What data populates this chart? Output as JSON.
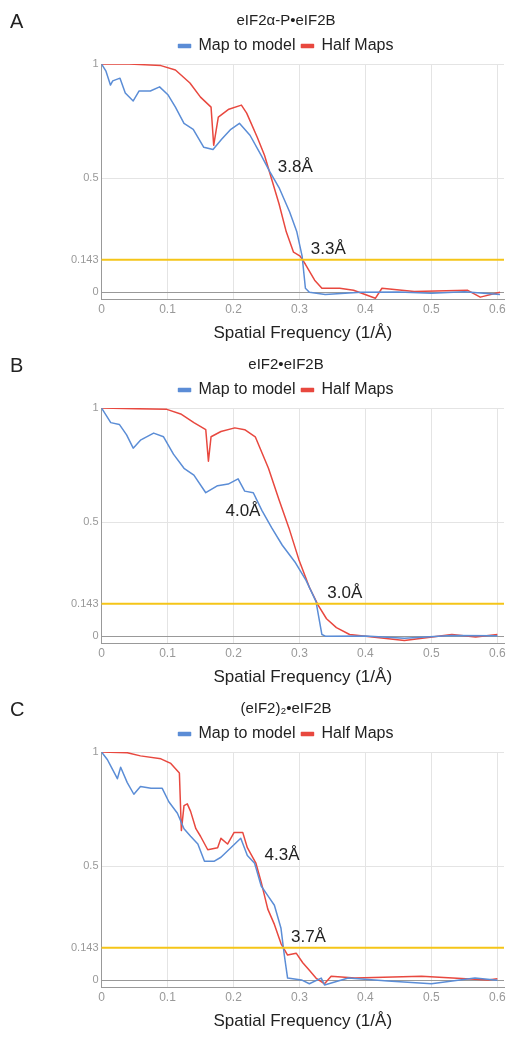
{
  "chart_data": [
    {
      "type": "line",
      "title": "eIF2α-P•eIF2B",
      "xlabel": "Spatial Frequency (1/Å)",
      "annotations": [
        "A",
        {
          "text": "3.8Å",
          "x": 0.255,
          "y": 0.5
        },
        {
          "text": "3.3Å",
          "x": 0.305,
          "y": 0.143
        }
      ],
      "xlim": [
        0,
        0.61
      ],
      "xticks": [
        0,
        0.1,
        0.2,
        0.3,
        0.4,
        0.5,
        0.6
      ],
      "ylim": [
        -0.03,
        1
      ],
      "yticks": [
        0,
        0.143,
        0.5,
        1
      ],
      "grid": true,
      "legend": "top",
      "ref_lines": [
        {
          "axis": "y",
          "value": 0.143,
          "color": "#f5c518"
        }
      ],
      "series": [
        {
          "name": "Map to model",
          "color": "#5b8dd6",
          "x": [
            0,
            0.0065,
            0.0135,
            0.017,
            0.028,
            0.036,
            0.048,
            0.057,
            0.074,
            0.088,
            0.101,
            0.112,
            0.125,
            0.139,
            0.155,
            0.169,
            0.182,
            0.196,
            0.209,
            0.225,
            0.242,
            0.255,
            0.269,
            0.285,
            0.296,
            0.304,
            0.309,
            0.315,
            0.339,
            0.393,
            0.45,
            0.5,
            0.55,
            0.604
          ],
          "values": [
            1,
            0.97,
            0.908,
            0.926,
            0.938,
            0.873,
            0.838,
            0.882,
            0.882,
            0.9,
            0.864,
            0.811,
            0.74,
            0.714,
            0.635,
            0.626,
            0.67,
            0.714,
            0.74,
            0.688,
            0.6,
            0.529,
            0.459,
            0.353,
            0.265,
            0.159,
            0.018,
            0,
            -0.009,
            0,
            0.002,
            -0.004,
            0.003,
            -0.009
          ]
        },
        {
          "name": "Half Maps",
          "color": "#e8483f",
          "x": [
            0,
            0.042,
            0.09,
            0.112,
            0.134,
            0.15,
            0.166,
            0.17,
            0.177,
            0.193,
            0.212,
            0.22,
            0.236,
            0.247,
            0.258,
            0.269,
            0.28,
            0.291,
            0.301,
            0.309,
            0.323,
            0.334,
            0.361,
            0.382,
            0.415,
            0.425,
            0.474,
            0.555,
            0.574,
            0.604
          ],
          "values": [
            1,
            1,
            0.993,
            0.974,
            0.917,
            0.855,
            0.811,
            0.644,
            0.767,
            0.802,
            0.82,
            0.785,
            0.679,
            0.6,
            0.494,
            0.388,
            0.265,
            0.176,
            0.159,
            0.123,
            0.053,
            0.018,
            0.018,
            0.009,
            -0.026,
            0.018,
            0.004,
            0.009,
            -0.021,
            0
          ]
        }
      ]
    },
    {
      "type": "line",
      "title": "eIF2•eIF2B",
      "xlabel": "Spatial Frequency (1/Å)",
      "annotations": [
        "B",
        {
          "text": "4.0Å",
          "x": 0.253,
          "y": 0.5
        },
        {
          "text": "3.0Å",
          "x": 0.33,
          "y": 0.143
        }
      ],
      "xlim": [
        0,
        0.61
      ],
      "xticks": [
        0,
        0.1,
        0.2,
        0.3,
        0.4,
        0.5,
        0.6
      ],
      "ylim": [
        -0.03,
        1
      ],
      "yticks": [
        0,
        0.143,
        0.5,
        1
      ],
      "grid": true,
      "legend": "top",
      "ref_lines": [
        {
          "axis": "y",
          "value": 0.143,
          "color": "#f5c518"
        }
      ],
      "series": [
        {
          "name": "Map to model",
          "color": "#5b8dd6",
          "x": [
            0,
            0.014,
            0.027,
            0.038,
            0.048,
            0.059,
            0.079,
            0.094,
            0.109,
            0.125,
            0.14,
            0.158,
            0.176,
            0.192,
            0.207,
            0.217,
            0.23,
            0.243,
            0.258,
            0.274,
            0.294,
            0.31,
            0.325,
            0.334,
            0.34,
            0.4,
            0.459,
            0.53,
            0.6
          ],
          "values": [
            1,
            0.936,
            0.928,
            0.882,
            0.824,
            0.859,
            0.89,
            0.874,
            0.798,
            0.736,
            0.706,
            0.629,
            0.66,
            0.667,
            0.69,
            0.636,
            0.629,
            0.552,
            0.475,
            0.399,
            0.322,
            0.245,
            0.153,
            0.008,
            0,
            0.002,
            -0.008,
            0.004,
            0.003
          ]
        },
        {
          "name": "Half Maps",
          "color": "#e8483f",
          "x": [
            0,
            0.053,
            0.099,
            0.12,
            0.14,
            0.158,
            0.162,
            0.166,
            0.181,
            0.202,
            0.217,
            0.233,
            0.253,
            0.269,
            0.284,
            0.299,
            0.315,
            0.328,
            0.341,
            0.356,
            0.376,
            0.428,
            0.459,
            0.531,
            0.567,
            0.6
          ],
          "values": [
            1,
            0.997,
            0.994,
            0.974,
            0.936,
            0.905,
            0.767,
            0.874,
            0.897,
            0.913,
            0.905,
            0.874,
            0.736,
            0.598,
            0.475,
            0.337,
            0.215,
            0.138,
            0.077,
            0.038,
            0.008,
            -0.008,
            -0.018,
            0.008,
            -0.003,
            0.008
          ]
        }
      ]
    },
    {
      "type": "line",
      "title": "(eIF2)₂•eIF2B",
      "xlabel": "Spatial Frequency (1/Å)",
      "annotations": [
        "C",
        {
          "text": "4.3Å",
          "x": 0.235,
          "y": 0.5
        },
        {
          "text": "3.7Å",
          "x": 0.275,
          "y": 0.143
        }
      ],
      "xlim": [
        0,
        0.61
      ],
      "xticks": [
        0,
        0.1,
        0.2,
        0.3,
        0.4,
        0.5,
        0.6
      ],
      "ylim": [
        -0.03,
        1
      ],
      "yticks": [
        0,
        0.143,
        0.5,
        1
      ],
      "grid": true,
      "legend": "top",
      "ref_lines": [
        {
          "axis": "y",
          "value": 0.143,
          "color": "#f5c518"
        }
      ],
      "series": [
        {
          "name": "Map to model",
          "color": "#5b8dd6",
          "x": [
            0,
            0.009,
            0.024,
            0.029,
            0.039,
            0.049,
            0.059,
            0.075,
            0.092,
            0.102,
            0.115,
            0.125,
            0.135,
            0.146,
            0.156,
            0.171,
            0.181,
            0.196,
            0.211,
            0.221,
            0.232,
            0.242,
            0.252,
            0.262,
            0.272,
            0.277,
            0.282,
            0.303,
            0.315,
            0.333,
            0.338,
            0.374,
            0.434,
            0.5,
            0.566,
            0.6
          ],
          "values": [
            1,
            0.966,
            0.883,
            0.933,
            0.866,
            0.815,
            0.849,
            0.841,
            0.841,
            0.782,
            0.732,
            0.664,
            0.631,
            0.597,
            0.522,
            0.522,
            0.539,
            0.581,
            0.622,
            0.547,
            0.513,
            0.413,
            0.371,
            0.329,
            0.228,
            0.111,
            0.01,
            0.002,
            -0.015,
            0.01,
            -0.02,
            0.01,
            -0.003,
            -0.015,
            0.01,
            0
          ]
        },
        {
          "name": "Half Maps",
          "color": "#e8483f",
          "x": [
            0,
            0.039,
            0.059,
            0.09,
            0.105,
            0.118,
            0.121,
            0.125,
            0.13,
            0.135,
            0.143,
            0.15,
            0.161,
            0.176,
            0.181,
            0.191,
            0.201,
            0.214,
            0.221,
            0.234,
            0.242,
            0.252,
            0.262,
            0.272,
            0.282,
            0.295,
            0.305,
            0.315,
            0.325,
            0.338,
            0.348,
            0.384,
            0.485,
            0.586,
            0.6
          ],
          "values": [
            1,
            0.997,
            0.983,
            0.97,
            0.95,
            0.908,
            0.656,
            0.765,
            0.773,
            0.74,
            0.664,
            0.631,
            0.572,
            0.581,
            0.622,
            0.597,
            0.648,
            0.648,
            0.581,
            0.513,
            0.43,
            0.312,
            0.245,
            0.161,
            0.111,
            0.119,
            0.077,
            0.044,
            0.01,
            -0.015,
            0.018,
            0.01,
            0.018,
            0.002,
            0.007
          ]
        }
      ]
    }
  ]
}
